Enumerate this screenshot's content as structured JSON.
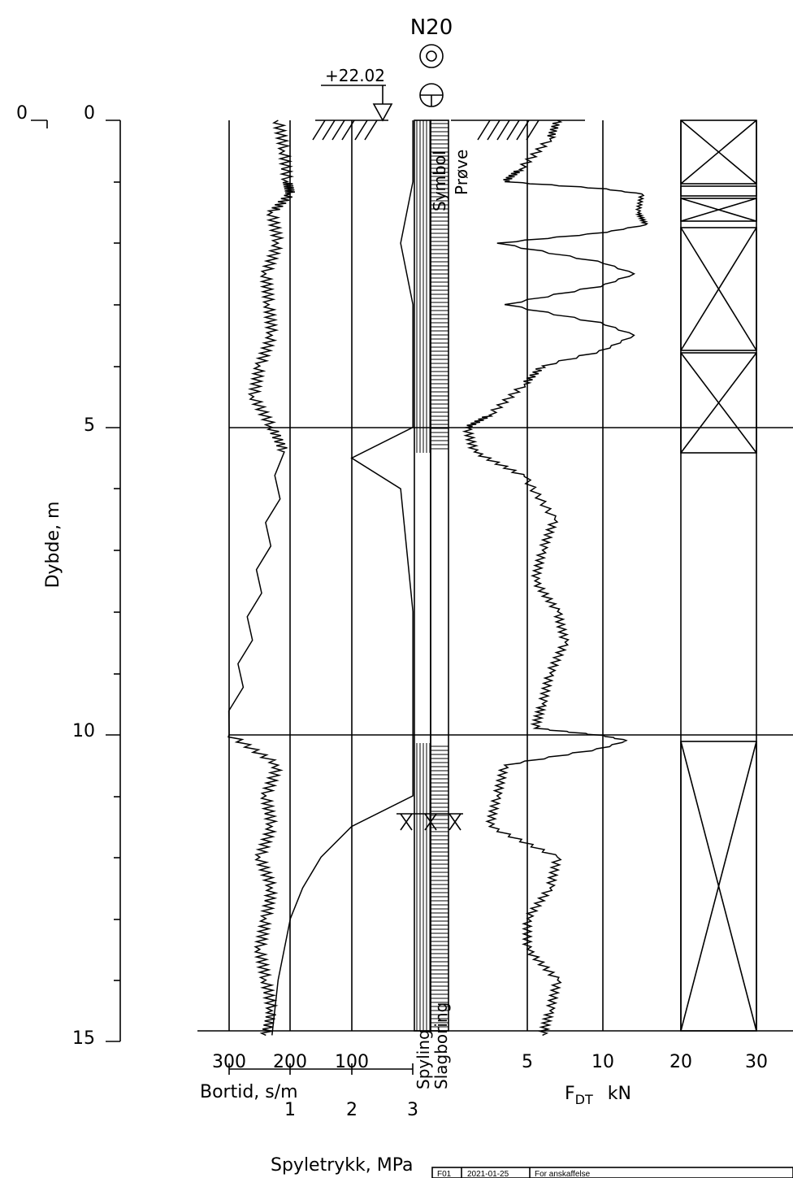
{
  "header": {
    "borehole_id": "N20",
    "elevation_label": "+22.02"
  },
  "axes": {
    "depth_label": "Dybde, m",
    "depth_ticks": [
      "0",
      "5",
      "10",
      "15"
    ],
    "left_zero": "0",
    "bortid_label": "Bortid, s/m",
    "bortid_ticks": [
      "300",
      "200",
      "100"
    ],
    "spyletrykk_label": "Spyletrykk, MPa",
    "spyletrykk_ticks": [
      "1",
      "2",
      "3"
    ],
    "spyling_label": "Spyling",
    "slagboring_label": "Slagboring",
    "symbol_label": "Symbol",
    "prove_label": "Prøve",
    "fdt_label_main": "F",
    "fdt_label_sub": "DT",
    "fdt_unit": "kN",
    "fdt_ticks": [
      "5",
      "10",
      "20",
      "30"
    ]
  },
  "revision": {
    "code": "F01",
    "date": "2021-01-25",
    "text": "For anskaffelse"
  },
  "chart_data": {
    "type": "line",
    "depth_range_m": [
      0,
      15
    ],
    "fdt_scale_kN": [
      0,
      5,
      10,
      20,
      30
    ],
    "fdt_profile": {
      "depth_m": [
        0.0,
        0.3,
        0.8,
        1.0,
        1.2,
        1.5,
        1.7,
        2.0,
        2.5,
        3.0,
        3.5,
        4.0,
        4.3,
        4.8,
        5.0,
        5.4,
        5.8,
        6.5,
        7.0,
        7.5,
        8.0,
        8.5,
        9.0,
        9.5,
        9.9,
        10.1,
        10.5,
        11.0,
        11.5,
        12.0,
        12.5,
        13.0,
        13.5,
        14.0,
        14.5,
        14.9
      ],
      "kN": [
        7.0,
        6.5,
        4.5,
        3.5,
        15.0,
        14.5,
        15.5,
        3.0,
        14.0,
        3.5,
        14.0,
        6.0,
        4.8,
        2.5,
        1.0,
        1.5,
        4.8,
        6.8,
        6.0,
        5.5,
        7.0,
        7.5,
        6.5,
        6.0,
        5.5,
        13.0,
        3.5,
        3.0,
        2.5,
        7.0,
        6.5,
        5.0,
        5.0,
        7.0,
        6.5,
        6.0
      ]
    },
    "bortid_profile": {
      "depth_m": [
        0.0,
        0.5,
        1.0,
        1.2,
        1.5,
        2.0,
        2.5,
        3.0,
        3.5,
        4.0,
        4.5,
        5.0,
        5.4,
        10.0,
        10.5,
        11.0,
        11.5,
        12.0,
        12.5,
        13.0,
        13.5,
        14.0,
        14.5,
        14.9
      ],
      "s_per_m": [
        220,
        210,
        205,
        200,
        230,
        220,
        240,
        235,
        230,
        250,
        260,
        230,
        210,
        300,
        220,
        240,
        230,
        250,
        230,
        240,
        250,
        240,
        230,
        240
      ]
    },
    "spyletrykk_profile": {
      "depth_m": [
        0.0,
        1.0,
        2.0,
        3.0,
        4.0,
        5.0,
        5.5,
        6.0,
        8.0,
        10.0,
        10.5,
        11.0,
        11.5,
        12.0,
        12.5,
        13.0,
        14.0,
        14.9
      ],
      "MPa": [
        3.0,
        3.0,
        2.8,
        3.0,
        3.0,
        3.0,
        2.0,
        2.8,
        3.0,
        3.0,
        3.0,
        3.0,
        2.0,
        1.5,
        1.2,
        1.0,
        0.8,
        0.7
      ]
    }
  }
}
